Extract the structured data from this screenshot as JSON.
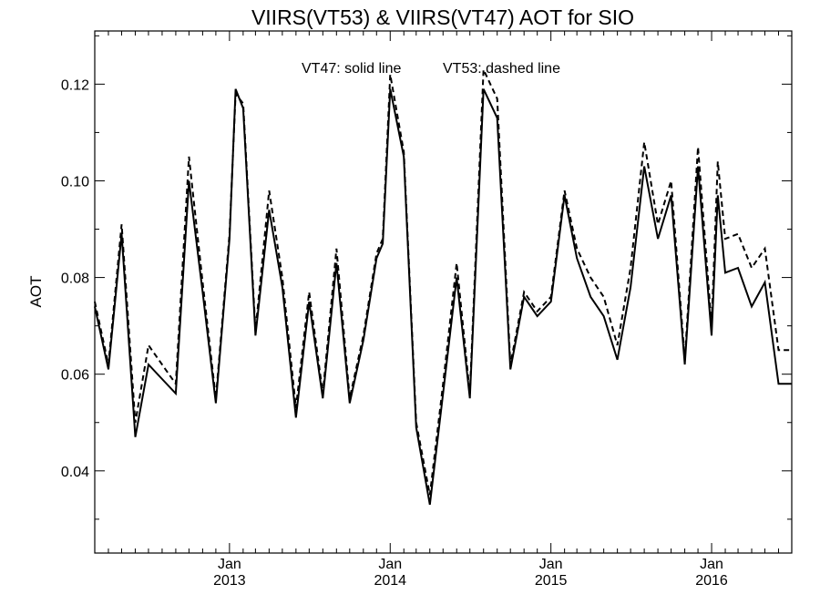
{
  "chart_data": {
    "type": "line",
    "title": "VIIRS(VT53) & VIIRS(VT47)  AOT for SIO",
    "annotation_left": "VT47: solid line",
    "annotation_right": "VT53: dashed line",
    "ylabel": "AOT",
    "xlabel": "",
    "ylim": [
      0.023,
      0.131
    ],
    "xlim": [
      "2012-03",
      "2016-07"
    ],
    "y_ticks": [
      "0.04",
      "0.06",
      "0.08",
      "0.10",
      "0.12"
    ],
    "x_ticks": [
      {
        "month": "Jan",
        "year": "2013",
        "date": "2013-01"
      },
      {
        "month": "Jan",
        "year": "2014",
        "date": "2014-01"
      },
      {
        "month": "Jan",
        "year": "2015",
        "date": "2015-01"
      },
      {
        "month": "Jan",
        "year": "2016",
        "date": "2016-01"
      }
    ],
    "grid": false,
    "series": [
      {
        "name": "VT47",
        "style": "solid",
        "color": "#000000",
        "x": [
          "2012-03-01",
          "2012-04-01",
          "2012-05-01",
          "2012-06-01",
          "2012-07-01",
          "2012-08-01",
          "2012-09-01",
          "2012-10-01",
          "2012-11-01",
          "2012-12-01",
          "2013-01-01",
          "2013-01-15",
          "2013-02-01",
          "2013-03-01",
          "2013-04-01",
          "2013-05-01",
          "2013-06-01",
          "2013-07-01",
          "2013-08-01",
          "2013-09-01",
          "2013-10-01",
          "2013-11-01",
          "2013-12-01",
          "2013-12-15",
          "2014-01-01",
          "2014-02-01",
          "2014-03-01",
          "2014-04-01",
          "2014-05-01",
          "2014-06-01",
          "2014-07-01",
          "2014-08-01",
          "2014-09-01",
          "2014-10-01",
          "2014-11-01",
          "2014-12-01",
          "2015-01-01",
          "2015-02-01",
          "2015-03-01",
          "2015-04-01",
          "2015-05-01",
          "2015-06-01",
          "2015-07-01",
          "2015-08-01",
          "2015-09-01",
          "2015-10-01",
          "2015-11-01",
          "2015-12-01",
          "2016-01-01",
          "2016-01-15",
          "2016-02-01",
          "2016-03-01",
          "2016-04-01",
          "2016-05-01",
          "2016-06-01",
          "2016-07-01"
        ],
        "values": [
          0.074,
          0.061,
          0.089,
          0.047,
          0.062,
          0.059,
          0.056,
          0.1,
          0.077,
          0.054,
          0.088,
          0.119,
          0.115,
          0.068,
          0.094,
          0.078,
          0.051,
          0.075,
          0.055,
          0.083,
          0.054,
          0.067,
          0.084,
          0.087,
          0.119,
          0.105,
          0.049,
          0.033,
          0.056,
          0.08,
          0.055,
          0.119,
          0.113,
          0.061,
          0.076,
          0.072,
          0.075,
          0.097,
          0.084,
          0.076,
          0.072,
          0.063,
          0.078,
          0.103,
          0.088,
          0.097,
          0.062,
          0.103,
          0.068,
          0.097,
          0.081,
          0.082,
          0.074,
          0.079,
          0.058,
          0.058
        ]
      },
      {
        "name": "VT53",
        "style": "dashed",
        "color": "#000000",
        "x": [
          "2012-03-01",
          "2012-04-01",
          "2012-05-01",
          "2012-06-01",
          "2012-07-01",
          "2012-08-01",
          "2012-09-01",
          "2012-10-01",
          "2012-11-01",
          "2012-12-01",
          "2013-01-01",
          "2013-01-15",
          "2013-02-01",
          "2013-03-01",
          "2013-04-01",
          "2013-05-01",
          "2013-06-01",
          "2013-07-01",
          "2013-08-01",
          "2013-09-01",
          "2013-10-01",
          "2013-11-01",
          "2013-12-01",
          "2013-12-15",
          "2014-01-01",
          "2014-02-01",
          "2014-03-01",
          "2014-04-01",
          "2014-05-01",
          "2014-06-01",
          "2014-07-01",
          "2014-08-01",
          "2014-09-01",
          "2014-10-01",
          "2014-11-01",
          "2014-12-01",
          "2015-01-01",
          "2015-02-01",
          "2015-03-01",
          "2015-04-01",
          "2015-05-01",
          "2015-06-01",
          "2015-07-01",
          "2015-08-01",
          "2015-09-01",
          "2015-10-01",
          "2015-11-01",
          "2015-12-01",
          "2016-01-01",
          "2016-01-15",
          "2016-02-01",
          "2016-03-01",
          "2016-04-01",
          "2016-05-01",
          "2016-06-01",
          "2016-07-01"
        ],
        "values": [
          0.075,
          0.062,
          0.091,
          0.05,
          0.066,
          0.062,
          0.058,
          0.105,
          0.079,
          0.055,
          0.089,
          0.118,
          0.116,
          0.069,
          0.098,
          0.08,
          0.053,
          0.077,
          0.056,
          0.086,
          0.055,
          0.068,
          0.085,
          0.088,
          0.122,
          0.106,
          0.05,
          0.035,
          0.058,
          0.083,
          0.056,
          0.123,
          0.117,
          0.062,
          0.077,
          0.073,
          0.076,
          0.098,
          0.086,
          0.08,
          0.076,
          0.066,
          0.082,
          0.108,
          0.091,
          0.1,
          0.063,
          0.107,
          0.07,
          0.104,
          0.088,
          0.089,
          0.082,
          0.086,
          0.065,
          0.065
        ]
      }
    ]
  }
}
